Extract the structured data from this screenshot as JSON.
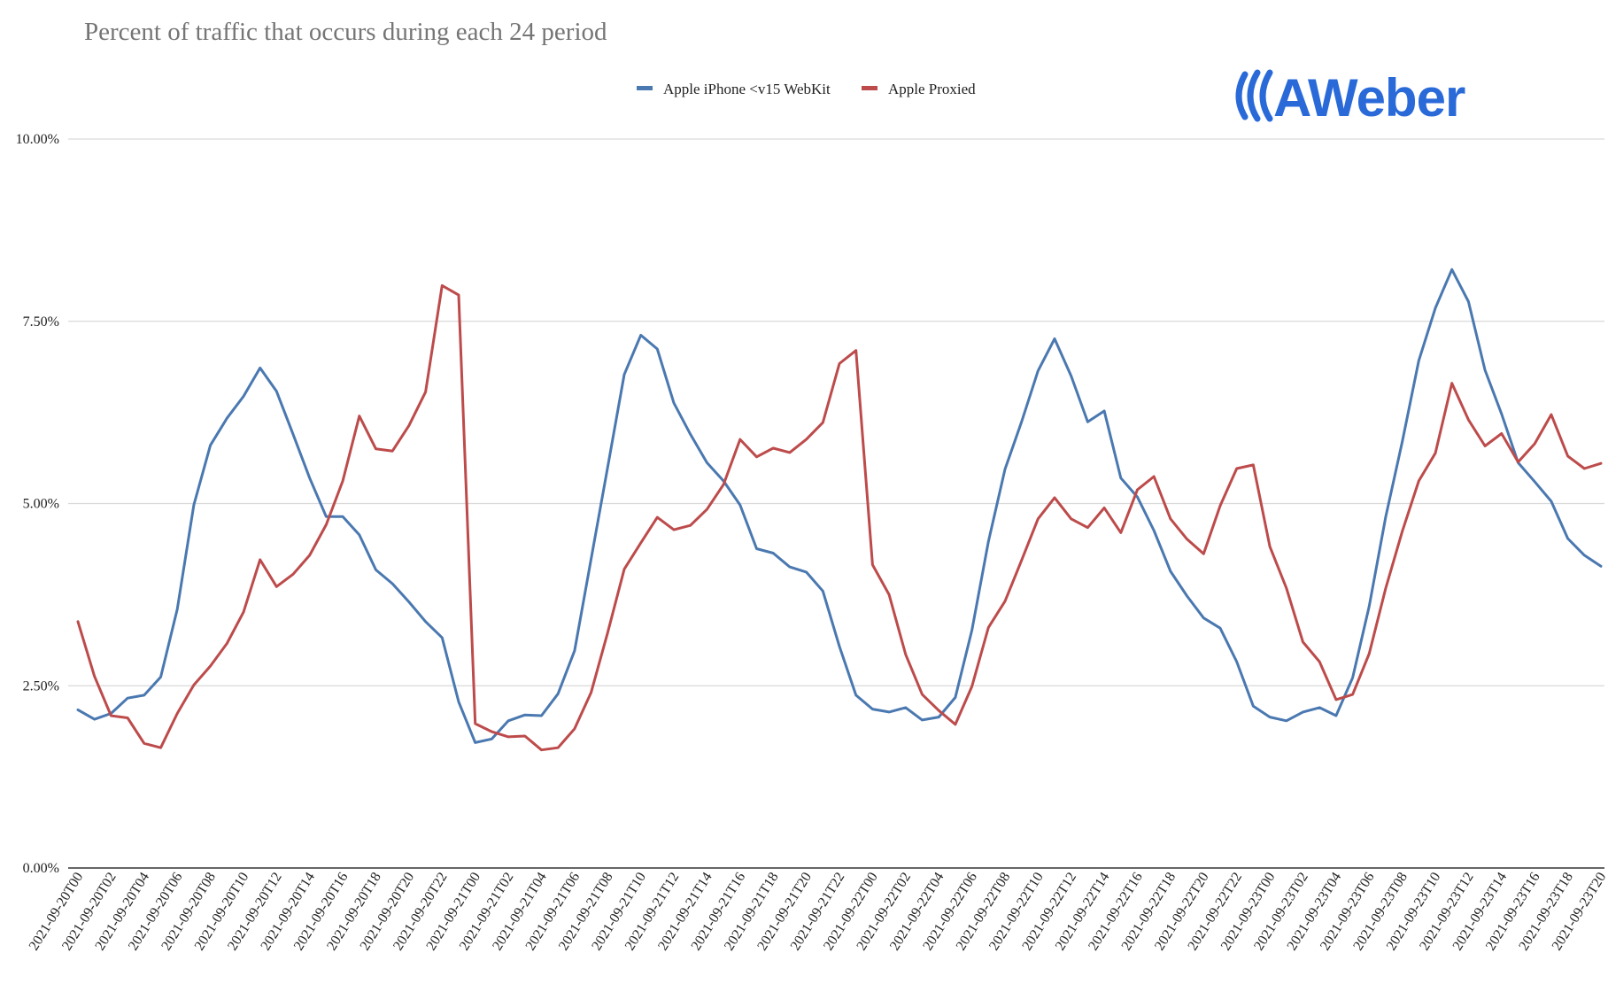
{
  "logo": {
    "text": "AWeber",
    "color": "#2a6ad8"
  },
  "chart_data": {
    "type": "line",
    "title": "Percent of traffic that occurs during each 24 period",
    "xlabel": "",
    "ylabel": "",
    "ylim": [
      0,
      10
    ],
    "y_ticks": [
      {
        "value": 0,
        "label": "0.00%"
      },
      {
        "value": 2.5,
        "label": "2.50%"
      },
      {
        "value": 5,
        "label": "5.00%"
      },
      {
        "value": 7.5,
        "label": "7.50%"
      },
      {
        "value": 10,
        "label": "10.00%"
      }
    ],
    "legend_position": "top-center",
    "x": [
      "2021-09-20T00",
      "2021-09-20T01",
      "2021-09-20T02",
      "2021-09-20T03",
      "2021-09-20T04",
      "2021-09-20T05",
      "2021-09-20T06",
      "2021-09-20T07",
      "2021-09-20T08",
      "2021-09-20T09",
      "2021-09-20T10",
      "2021-09-20T11",
      "2021-09-20T12",
      "2021-09-20T13",
      "2021-09-20T14",
      "2021-09-20T15",
      "2021-09-20T16",
      "2021-09-20T17",
      "2021-09-20T18",
      "2021-09-20T19",
      "2021-09-20T20",
      "2021-09-20T21",
      "2021-09-20T22",
      "2021-09-20T23",
      "2021-09-21T00",
      "2021-09-21T01",
      "2021-09-21T02",
      "2021-09-21T03",
      "2021-09-21T04",
      "2021-09-21T05",
      "2021-09-21T06",
      "2021-09-21T07",
      "2021-09-21T08",
      "2021-09-21T09",
      "2021-09-21T10",
      "2021-09-21T11",
      "2021-09-21T12",
      "2021-09-21T13",
      "2021-09-21T14",
      "2021-09-21T15",
      "2021-09-21T16",
      "2021-09-21T17",
      "2021-09-21T18",
      "2021-09-21T19",
      "2021-09-21T20",
      "2021-09-21T21",
      "2021-09-21T22",
      "2021-09-21T23",
      "2021-09-22T00",
      "2021-09-22T01",
      "2021-09-22T02",
      "2021-09-22T03",
      "2021-09-22T04",
      "2021-09-22T05",
      "2021-09-22T06",
      "2021-09-22T07",
      "2021-09-22T08",
      "2021-09-22T09",
      "2021-09-22T10",
      "2021-09-22T11",
      "2021-09-22T12",
      "2021-09-22T13",
      "2021-09-22T14",
      "2021-09-22T15",
      "2021-09-22T16",
      "2021-09-22T17",
      "2021-09-22T18",
      "2021-09-22T19",
      "2021-09-22T20",
      "2021-09-22T21",
      "2021-09-22T22",
      "2021-09-22T23",
      "2021-09-23T00",
      "2021-09-23T01",
      "2021-09-23T02",
      "2021-09-23T03",
      "2021-09-23T04",
      "2021-09-23T05",
      "2021-09-23T06",
      "2021-09-23T07",
      "2021-09-23T08",
      "2021-09-23T09",
      "2021-09-23T10",
      "2021-09-23T11",
      "2021-09-23T12",
      "2021-09-23T13",
      "2021-09-23T14",
      "2021-09-23T15",
      "2021-09-23T16",
      "2021-09-23T17",
      "2021-09-23T18",
      "2021-09-23T19",
      "2021-09-23T20"
    ],
    "x_tick_labels": [
      "2021-09-20T00",
      "2021-09-20T02",
      "2021-09-20T04",
      "2021-09-20T06",
      "2021-09-20T08",
      "2021-09-20T10",
      "2021-09-20T12",
      "2021-09-20T14",
      "2021-09-20T16",
      "2021-09-20T18",
      "2021-09-20T20",
      "2021-09-20T22",
      "2021-09-21T00",
      "2021-09-21T02",
      "2021-09-21T04",
      "2021-09-21T06",
      "2021-09-21T08",
      "2021-09-21T10",
      "2021-09-21T12",
      "2021-09-21T14",
      "2021-09-21T16",
      "2021-09-21T18",
      "2021-09-21T20",
      "2021-09-21T22",
      "2021-09-22T00",
      "2021-09-22T02",
      "2021-09-22T04",
      "2021-09-22T06",
      "2021-09-22T08",
      "2021-09-22T10",
      "2021-09-22T12",
      "2021-09-22T14",
      "2021-09-22T16",
      "2021-09-22T18",
      "2021-09-22T20",
      "2021-09-22T22",
      "2021-09-23T00",
      "2021-09-23T02",
      "2021-09-23T04",
      "2021-09-23T06",
      "2021-09-23T08",
      "2021-09-23T10",
      "2021-09-23T12",
      "2021-09-23T14",
      "2021-09-23T16",
      "2021-09-23T18",
      "2021-09-23T20"
    ],
    "series": [
      {
        "name": "Apple iPhone <v15 WebKit",
        "color": "#4a78b0",
        "values": [
          2.17,
          2.04,
          2.12,
          2.33,
          2.37,
          2.62,
          3.55,
          4.98,
          5.8,
          6.17,
          6.47,
          6.86,
          6.54,
          5.95,
          5.35,
          4.82,
          4.82,
          4.57,
          4.09,
          3.9,
          3.65,
          3.38,
          3.16,
          2.28,
          1.72,
          1.77,
          2.02,
          2.1,
          2.09,
          2.39,
          2.98,
          4.24,
          5.5,
          6.77,
          7.31,
          7.12,
          6.38,
          5.95,
          5.56,
          5.31,
          4.98,
          4.38,
          4.32,
          4.13,
          4.06,
          3.8,
          3.04,
          2.37,
          2.18,
          2.14,
          2.2,
          2.03,
          2.07,
          2.34,
          3.26,
          4.48,
          5.47,
          6.12,
          6.82,
          7.26,
          6.75,
          6.12,
          6.27,
          5.35,
          5.09,
          4.63,
          4.07,
          3.73,
          3.43,
          3.29,
          2.83,
          2.22,
          2.07,
          2.02,
          2.14,
          2.2,
          2.09,
          2.61,
          3.59,
          4.82,
          5.85,
          6.96,
          7.68,
          8.21,
          7.77,
          6.83,
          6.23,
          5.56,
          5.3,
          5.03,
          4.52,
          4.29,
          4.14
        ]
      },
      {
        "name": "Apple Proxied",
        "color": "#bd4b4b",
        "values": [
          3.38,
          2.63,
          2.09,
          2.06,
          1.71,
          1.65,
          2.12,
          2.51,
          2.77,
          3.08,
          3.51,
          4.23,
          3.86,
          4.03,
          4.29,
          4.71,
          5.31,
          6.2,
          5.75,
          5.72,
          6.07,
          6.53,
          7.99,
          7.86,
          1.98,
          1.87,
          1.8,
          1.81,
          1.62,
          1.65,
          1.91,
          2.41,
          3.23,
          4.1,
          4.46,
          4.81,
          4.64,
          4.7,
          4.92,
          5.26,
          5.88,
          5.64,
          5.76,
          5.7,
          5.88,
          6.11,
          6.92,
          7.1,
          4.16,
          3.75,
          2.93,
          2.38,
          2.16,
          1.97,
          2.49,
          3.3,
          3.66,
          4.22,
          4.79,
          5.08,
          4.79,
          4.67,
          4.94,
          4.6,
          5.19,
          5.37,
          4.79,
          4.51,
          4.31,
          4.97,
          5.48,
          5.53,
          4.41,
          3.84,
          3.1,
          2.83,
          2.31,
          2.38,
          2.94,
          3.84,
          4.62,
          5.31,
          5.69,
          6.65,
          6.15,
          5.79,
          5.96,
          5.57,
          5.82,
          6.22,
          5.65,
          5.48,
          5.55
        ]
      }
    ]
  }
}
